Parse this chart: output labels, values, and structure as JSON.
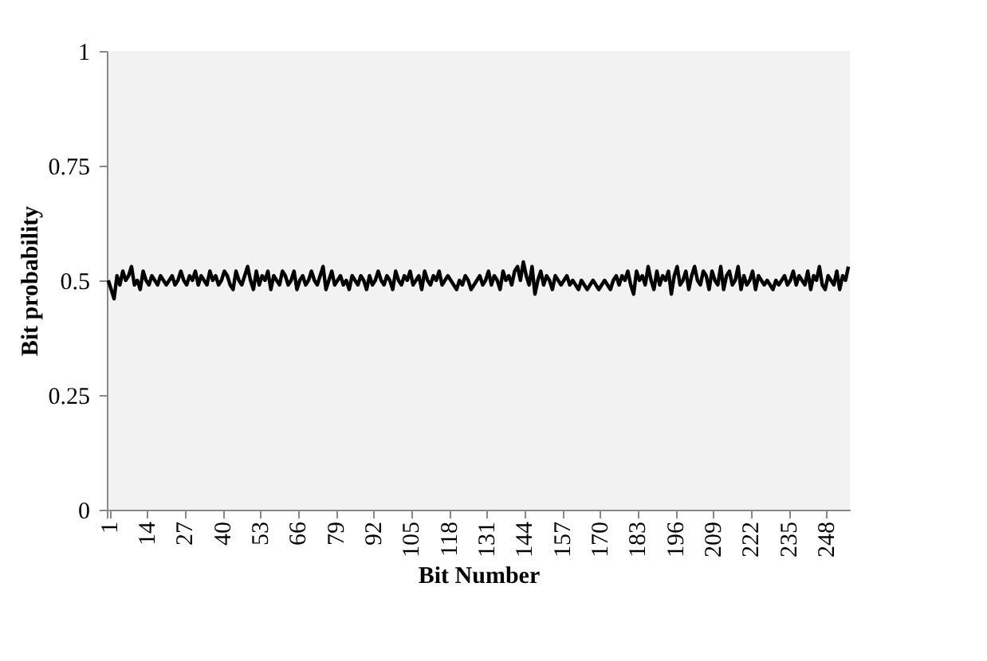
{
  "chart_data": {
    "type": "line",
    "xlabel": "Bit Number",
    "ylabel": "Bit probability",
    "categories": [
      "1",
      null,
      null,
      null,
      null,
      null,
      null,
      null,
      null,
      null,
      null,
      null,
      null,
      "14",
      null,
      null,
      null,
      null,
      null,
      null,
      null,
      null,
      null,
      null,
      null,
      null,
      "27",
      null,
      null,
      null,
      null,
      null,
      null,
      null,
      null,
      null,
      null,
      null,
      null,
      "40",
      null,
      null,
      null,
      null,
      null,
      null,
      null,
      null,
      null,
      null,
      null,
      null,
      "53",
      null,
      null,
      null,
      null,
      null,
      null,
      null,
      null,
      null,
      null,
      null,
      null,
      "66",
      null,
      null,
      null,
      null,
      null,
      null,
      null,
      null,
      null,
      null,
      null,
      null,
      "79",
      null,
      null,
      null,
      null,
      null,
      null,
      null,
      null,
      null,
      null,
      null,
      null,
      "92",
      null,
      null,
      null,
      null,
      null,
      null,
      null,
      null,
      null,
      null,
      null,
      null,
      "105",
      null,
      null,
      null,
      null,
      null,
      null,
      null,
      null,
      null,
      null,
      null,
      null,
      "118",
      null,
      null,
      null,
      null,
      null,
      null,
      null,
      null,
      null,
      null,
      null,
      null,
      "131",
      null,
      null,
      null,
      null,
      null,
      null,
      null,
      null,
      null,
      null,
      null,
      null,
      "144",
      null,
      null,
      null,
      null,
      null,
      null,
      null,
      null,
      null,
      null,
      null,
      null,
      "157",
      null,
      null,
      null,
      null,
      null,
      null,
      null,
      null,
      null,
      null,
      null,
      null,
      "170",
      null,
      null,
      null,
      null,
      null,
      null,
      null,
      null,
      null,
      null,
      null,
      null,
      "183",
      null,
      null,
      null,
      null,
      null,
      null,
      null,
      null,
      null,
      null,
      null,
      null,
      "196",
      null,
      null,
      null,
      null,
      null,
      null,
      null,
      null,
      null,
      null,
      null,
      null,
      "209",
      null,
      null,
      null,
      null,
      null,
      null,
      null,
      null,
      null,
      null,
      null,
      null,
      "222",
      null,
      null,
      null,
      null,
      null,
      null,
      null,
      null,
      null,
      null,
      null,
      null,
      "235",
      null,
      null,
      null,
      null,
      null,
      null,
      null,
      null,
      null,
      null,
      null,
      null,
      "248",
      null,
      null,
      null,
      null,
      null,
      null,
      null,
      null
    ],
    "series": [
      {
        "color": "#000000",
        "values": [
          0.5,
          0.48,
          0.46,
          0.51,
          0.49,
          0.52,
          0.5,
          0.51,
          0.53,
          0.49,
          0.5,
          0.48,
          0.52,
          0.5,
          0.49,
          0.51,
          0.5,
          0.49,
          0.51,
          0.5,
          0.49,
          0.5,
          0.51,
          0.49,
          0.5,
          0.52,
          0.5,
          0.49,
          0.51,
          0.5,
          0.52,
          0.49,
          0.51,
          0.5,
          0.49,
          0.52,
          0.5,
          0.51,
          0.49,
          0.5,
          0.52,
          0.51,
          0.49,
          0.48,
          0.52,
          0.5,
          0.49,
          0.51,
          0.53,
          0.5,
          0.48,
          0.52,
          0.49,
          0.51,
          0.5,
          0.52,
          0.48,
          0.51,
          0.5,
          0.49,
          0.52,
          0.51,
          0.49,
          0.5,
          0.52,
          0.48,
          0.5,
          0.51,
          0.49,
          0.5,
          0.52,
          0.5,
          0.49,
          0.51,
          0.53,
          0.48,
          0.5,
          0.52,
          0.49,
          0.5,
          0.51,
          0.49,
          0.5,
          0.48,
          0.51,
          0.5,
          0.49,
          0.51,
          0.5,
          0.48,
          0.51,
          0.49,
          0.5,
          0.52,
          0.5,
          0.49,
          0.51,
          0.5,
          0.48,
          0.52,
          0.5,
          0.49,
          0.51,
          0.5,
          0.52,
          0.49,
          0.5,
          0.51,
          0.48,
          0.52,
          0.5,
          0.49,
          0.51,
          0.5,
          0.52,
          0.49,
          0.5,
          0.51,
          0.5,
          0.49,
          0.48,
          0.5,
          0.49,
          0.51,
          0.5,
          0.48,
          0.49,
          0.5,
          0.51,
          0.49,
          0.5,
          0.52,
          0.49,
          0.51,
          0.5,
          0.48,
          0.52,
          0.5,
          0.51,
          0.49,
          0.52,
          0.53,
          0.5,
          0.54,
          0.51,
          0.49,
          0.53,
          0.47,
          0.5,
          0.52,
          0.49,
          0.51,
          0.5,
          0.48,
          0.51,
          0.5,
          0.49,
          0.5,
          0.51,
          0.49,
          0.5,
          0.49,
          0.48,
          0.5,
          0.49,
          0.48,
          0.49,
          0.5,
          0.49,
          0.48,
          0.49,
          0.5,
          0.49,
          0.48,
          0.5,
          0.51,
          0.49,
          0.51,
          0.5,
          0.52,
          0.49,
          0.47,
          0.52,
          0.5,
          0.51,
          0.49,
          0.53,
          0.5,
          0.48,
          0.52,
          0.49,
          0.51,
          0.5,
          0.52,
          0.47,
          0.51,
          0.53,
          0.49,
          0.5,
          0.52,
          0.48,
          0.51,
          0.53,
          0.5,
          0.49,
          0.52,
          0.51,
          0.48,
          0.52,
          0.5,
          0.49,
          0.53,
          0.48,
          0.51,
          0.52,
          0.49,
          0.5,
          0.53,
          0.48,
          0.51,
          0.49,
          0.5,
          0.52,
          0.48,
          0.51,
          0.5,
          0.49,
          0.5,
          0.49,
          0.48,
          0.5,
          0.49,
          0.5,
          0.51,
          0.49,
          0.5,
          0.52,
          0.49,
          0.51,
          0.5,
          0.49,
          0.52,
          0.48,
          0.51,
          0.5,
          0.53,
          0.49,
          0.48,
          0.51,
          0.5,
          0.49,
          0.52,
          0.48,
          0.51,
          0.5,
          0.53
        ]
      }
    ],
    "ylim": [
      0,
      1
    ],
    "yticks": [
      0,
      0.25,
      0.5,
      0.75,
      1
    ],
    "grid": false,
    "legend": false,
    "marker": "none",
    "line_style": "solid"
  }
}
